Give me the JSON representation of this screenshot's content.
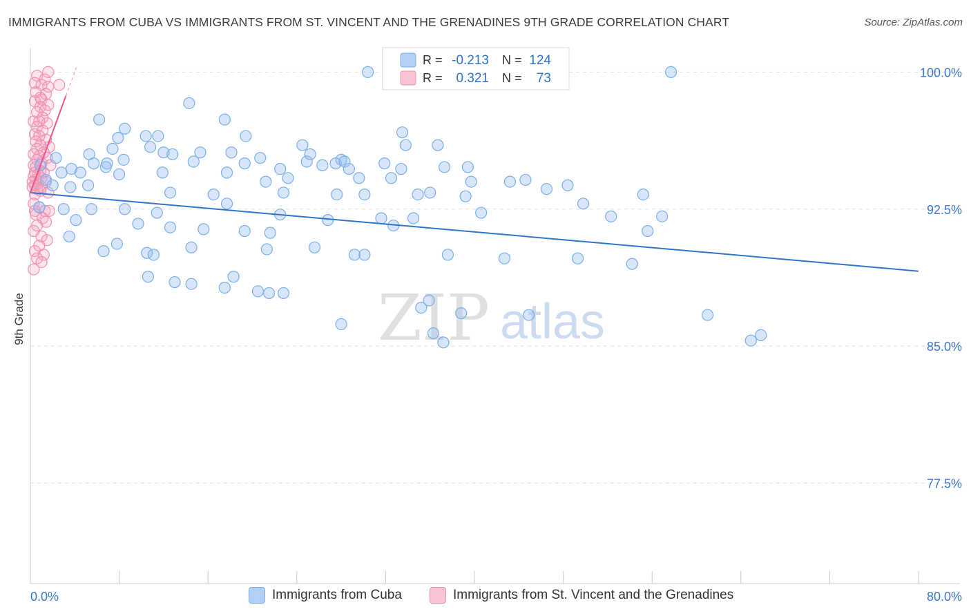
{
  "header": {
    "title": "IMMIGRANTS FROM CUBA VS IMMIGRANTS FROM ST. VINCENT AND THE GRENADINES 9TH GRADE CORRELATION CHART",
    "source": "Source: ZipAtlas.com"
  },
  "watermark": {
    "zip": "ZIP",
    "atlas": "atlas"
  },
  "stats_legend": {
    "rows": [
      {
        "r_label": "R =",
        "r_value": "-0.213",
        "n_label": "N =",
        "n_value": "124"
      },
      {
        "r_label": "R =",
        "r_value": "0.321",
        "n_label": "N =",
        "n_value": "73"
      }
    ]
  },
  "chart_data": {
    "type": "scatter",
    "title": "IMMIGRANTS FROM CUBA VS IMMIGRANTS FROM ST. VINCENT AND THE GRENADINES 9TH GRADE CORRELATION CHART",
    "xlabel": "",
    "ylabel": "9th Grade",
    "xlim": [
      0,
      80
    ],
    "ylim": [
      72.0,
      101.3
    ],
    "x_tick_labels": [
      "0.0%",
      "80.0%"
    ],
    "y_ticks": [
      77.5,
      85.0,
      92.5,
      100.0
    ],
    "y_tick_labels": [
      "77.5%",
      "85.0%",
      "92.5%",
      "100.0%"
    ],
    "grid": true,
    "legend_position": "bottom",
    "colors": {
      "cuba": "#7aaee8",
      "cuba_line": "#2f74c8",
      "svg": "#f08fb2",
      "svg_line": "#e8558a",
      "tick_text": "#3b78c7"
    },
    "series": [
      {
        "name": "Immigrants from Cuba",
        "r": -0.213,
        "n": 124,
        "trend": {
          "x": [
            0,
            80
          ],
          "y": [
            93.4,
            89.1
          ]
        },
        "points": [
          [
            30.4,
            100.0
          ],
          [
            57.7,
            100.0
          ],
          [
            14.3,
            98.3
          ],
          [
            6.2,
            97.4
          ],
          [
            17.5,
            97.4
          ],
          [
            8.5,
            96.9
          ],
          [
            33.5,
            96.7
          ],
          [
            10.4,
            96.5
          ],
          [
            7.9,
            96.4
          ],
          [
            11.5,
            96.5
          ],
          [
            19.4,
            96.5
          ],
          [
            24.5,
            96.0
          ],
          [
            33.8,
            96.0
          ],
          [
            36.7,
            96.0
          ],
          [
            7.4,
            95.8
          ],
          [
            10.8,
            95.9
          ],
          [
            12.0,
            95.6
          ],
          [
            5.3,
            95.5
          ],
          [
            12.8,
            95.5
          ],
          [
            15.3,
            95.6
          ],
          [
            18.1,
            95.6
          ],
          [
            20.7,
            95.3
          ],
          [
            25.2,
            95.5
          ],
          [
            28.0,
            95.2
          ],
          [
            31.9,
            95.0
          ],
          [
            2.3,
            95.3
          ],
          [
            5.7,
            95.0
          ],
          [
            6.9,
            95.0
          ],
          [
            8.4,
            95.2
          ],
          [
            14.7,
            95.1
          ],
          [
            19.3,
            95.0
          ],
          [
            24.9,
            95.1
          ],
          [
            27.5,
            95.0
          ],
          [
            28.3,
            95.1
          ],
          [
            3.7,
            94.7
          ],
          [
            6.8,
            94.8
          ],
          [
            22.5,
            94.7
          ],
          [
            26.3,
            94.9
          ],
          [
            33.4,
            94.7
          ],
          [
            37.3,
            94.8
          ],
          [
            39.4,
            94.8
          ],
          [
            0.9,
            94.9
          ],
          [
            2.8,
            94.5
          ],
          [
            4.5,
            94.5
          ],
          [
            8.0,
            94.4
          ],
          [
            11.9,
            94.5
          ],
          [
            17.7,
            94.5
          ],
          [
            21.2,
            94.0
          ],
          [
            23.2,
            94.2
          ],
          [
            28.7,
            94.7
          ],
          [
            29.6,
            94.2
          ],
          [
            32.5,
            94.2
          ],
          [
            39.7,
            94.0
          ],
          [
            43.2,
            94.0
          ],
          [
            44.6,
            94.1
          ],
          [
            1.4,
            94.1
          ],
          [
            2.0,
            93.8
          ],
          [
            3.6,
            93.7
          ],
          [
            5.2,
            93.8
          ],
          [
            12.6,
            93.4
          ],
          [
            16.5,
            93.3
          ],
          [
            22.8,
            93.4
          ],
          [
            27.6,
            93.3
          ],
          [
            30.1,
            93.3
          ],
          [
            34.9,
            93.3
          ],
          [
            36.0,
            93.4
          ],
          [
            39.2,
            93.2
          ],
          [
            46.5,
            93.6
          ],
          [
            48.4,
            93.8
          ],
          [
            55.2,
            93.3
          ],
          [
            0.8,
            92.6
          ],
          [
            3.0,
            92.5
          ],
          [
            5.5,
            92.5
          ],
          [
            8.5,
            92.5
          ],
          [
            11.4,
            92.3
          ],
          [
            17.7,
            92.8
          ],
          [
            22.5,
            92.2
          ],
          [
            31.6,
            92.0
          ],
          [
            34.5,
            92.0
          ],
          [
            40.6,
            92.3
          ],
          [
            49.8,
            92.8
          ],
          [
            52.3,
            92.1
          ],
          [
            56.9,
            92.1
          ],
          [
            4.1,
            91.9
          ],
          [
            9.7,
            91.7
          ],
          [
            12.6,
            91.5
          ],
          [
            15.6,
            91.4
          ],
          [
            19.3,
            91.3
          ],
          [
            21.6,
            91.2
          ],
          [
            26.8,
            91.9
          ],
          [
            32.7,
            91.6
          ],
          [
            55.6,
            91.3
          ],
          [
            3.5,
            91.0
          ],
          [
            6.6,
            90.2
          ],
          [
            7.8,
            90.6
          ],
          [
            10.5,
            90.1
          ],
          [
            11.1,
            90.0
          ],
          [
            14.5,
            90.4
          ],
          [
            21.3,
            90.3
          ],
          [
            25.6,
            90.4
          ],
          [
            29.2,
            90.0
          ],
          [
            30.1,
            90.0
          ],
          [
            37.6,
            90.0
          ],
          [
            42.7,
            89.8
          ],
          [
            49.3,
            89.8
          ],
          [
            54.2,
            89.5
          ],
          [
            10.6,
            88.8
          ],
          [
            13.0,
            88.5
          ],
          [
            14.5,
            88.4
          ],
          [
            17.5,
            88.2
          ],
          [
            18.3,
            88.8
          ],
          [
            20.5,
            88.0
          ],
          [
            21.5,
            87.9
          ],
          [
            22.8,
            87.9
          ],
          [
            35.9,
            87.5
          ],
          [
            35.2,
            87.1
          ],
          [
            38.8,
            86.8
          ],
          [
            44.9,
            86.7
          ],
          [
            28.0,
            86.2
          ],
          [
            36.3,
            85.7
          ],
          [
            37.2,
            85.2
          ],
          [
            61.0,
            86.7
          ],
          [
            64.9,
            85.3
          ],
          [
            65.8,
            85.6
          ]
        ]
      },
      {
        "name": "Immigrants from St. Vincent and the Grenadines",
        "r": 0.321,
        "n": 73,
        "trend": {
          "x": [
            0,
            3.2
          ],
          "y": [
            93.4,
            98.7
          ]
        },
        "points": [
          [
            1.6,
            100.0
          ],
          [
            0.6,
            99.8
          ],
          [
            1.3,
            99.6
          ],
          [
            0.4,
            99.4
          ],
          [
            1.0,
            99.3
          ],
          [
            2.6,
            99.3
          ],
          [
            1.6,
            99.2
          ],
          [
            0.5,
            98.9
          ],
          [
            1.4,
            98.8
          ],
          [
            0.9,
            98.6
          ],
          [
            1.0,
            98.5
          ],
          [
            0.4,
            98.4
          ],
          [
            1.6,
            98.2
          ],
          [
            0.9,
            98.1
          ],
          [
            1.3,
            97.9
          ],
          [
            0.6,
            97.8
          ],
          [
            1.1,
            97.5
          ],
          [
            0.3,
            97.3
          ],
          [
            0.8,
            97.3
          ],
          [
            1.5,
            97.2
          ],
          [
            0.6,
            97.0
          ],
          [
            1.1,
            96.8
          ],
          [
            0.4,
            96.6
          ],
          [
            0.8,
            96.5
          ],
          [
            1.4,
            96.3
          ],
          [
            0.5,
            96.2
          ],
          [
            0.9,
            96.0
          ],
          [
            1.7,
            95.9
          ],
          [
            0.6,
            95.8
          ],
          [
            1.2,
            95.6
          ],
          [
            0.3,
            95.5
          ],
          [
            0.8,
            95.4
          ],
          [
            1.5,
            95.3
          ],
          [
            0.6,
            95.2
          ],
          [
            1.0,
            95.0
          ],
          [
            0.3,
            94.9
          ],
          [
            1.8,
            94.9
          ],
          [
            0.5,
            94.8
          ],
          [
            0.9,
            94.6
          ],
          [
            0.4,
            94.5
          ],
          [
            1.2,
            94.5
          ],
          [
            0.7,
            94.4
          ],
          [
            0.3,
            94.3
          ],
          [
            1.0,
            94.2
          ],
          [
            0.5,
            94.1
          ],
          [
            1.4,
            94.0
          ],
          [
            0.2,
            94.0
          ],
          [
            0.7,
            93.9
          ],
          [
            0.4,
            93.8
          ],
          [
            1.0,
            93.7
          ],
          [
            0.2,
            93.7
          ],
          [
            0.6,
            93.6
          ],
          [
            0.9,
            93.5
          ],
          [
            1.6,
            93.4
          ],
          [
            0.4,
            93.3
          ],
          [
            0.3,
            92.8
          ],
          [
            0.8,
            92.6
          ],
          [
            0.4,
            92.4
          ],
          [
            1.3,
            92.4
          ],
          [
            1.7,
            92.4
          ],
          [
            0.5,
            92.2
          ],
          [
            1.1,
            92.0
          ],
          [
            1.4,
            91.8
          ],
          [
            0.6,
            91.6
          ],
          [
            0.3,
            91.3
          ],
          [
            1.0,
            91.0
          ],
          [
            1.5,
            90.8
          ],
          [
            0.8,
            90.5
          ],
          [
            0.4,
            90.2
          ],
          [
            1.2,
            90.0
          ],
          [
            0.6,
            89.8
          ],
          [
            1.0,
            89.6
          ],
          [
            0.3,
            89.2
          ]
        ]
      }
    ]
  },
  "bottom_legend": {
    "items": [
      {
        "label": "Immigrants from Cuba"
      },
      {
        "label": "Immigrants from St. Vincent and the Grenadines"
      }
    ]
  }
}
